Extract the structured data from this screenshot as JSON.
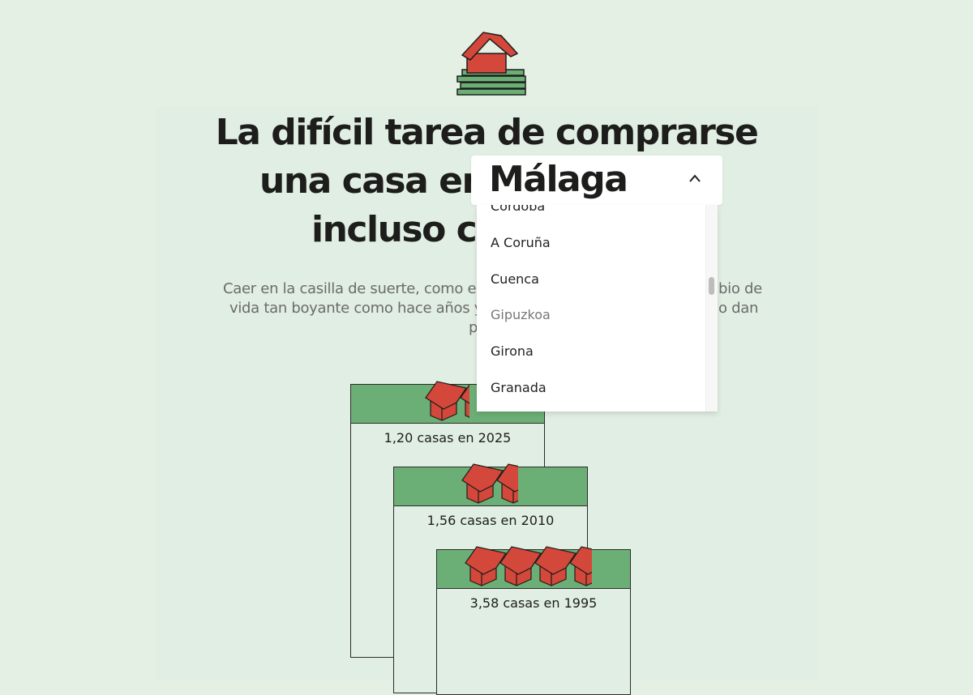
{
  "header": {
    "logo": "house-on-money-icon",
    "title_line1": "La difícil tarea de comprarse",
    "title_line2_prefix": "una casa en",
    "title_line3_visible": "incluso co"
  },
  "intro": {
    "line1_left": "Caer en la casilla de suerte, como en",
    "line1_right": "bio de",
    "line2_left": "vida tan boyante como hace años y l",
    "line2_right": "o dan",
    "line3_visible": "p"
  },
  "province_select": {
    "selected": "Málaga",
    "expanded": true,
    "options": [
      "Córdoba",
      "A Coruña",
      "Cuenca",
      "Gipuzkoa",
      "Girona",
      "Granada"
    ],
    "highlighted": "Gipuzkoa"
  },
  "cards": [
    {
      "label": "1,20 casas en 2025",
      "houses": 1.2
    },
    {
      "label": "1,56 casas en 2010",
      "houses": 1.56
    },
    {
      "label": "3,58 casas en 1995",
      "houses": 3.58
    }
  ],
  "colors": {
    "background": "#e5f0e5",
    "green": "#6caf76",
    "house_red": "#d4473b",
    "text": "#1d1d1b"
  }
}
